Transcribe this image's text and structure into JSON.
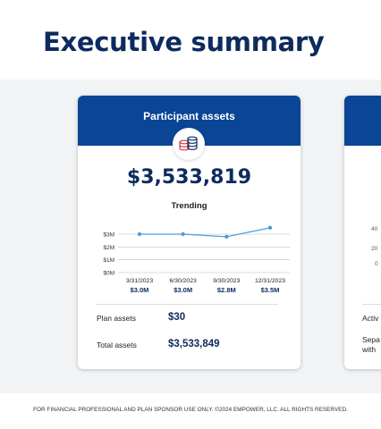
{
  "page": {
    "title": "Executive summary"
  },
  "card": {
    "title": "Participant assets",
    "icon": "coins-icon",
    "total": "$3,533,819",
    "trend_label": "Trending"
  },
  "chart_data": {
    "type": "line",
    "x": [
      "3/31/2023",
      "6/30/2023",
      "9/30/2023",
      "12/31/2023"
    ],
    "values": [
      3.0,
      3.0,
      2.8,
      3.5
    ],
    "value_labels": [
      "$3.0M",
      "$3.0M",
      "$2.8M",
      "$3.5M"
    ],
    "y_ticks": [
      3,
      2,
      1,
      0
    ],
    "y_tick_labels": [
      "$3M",
      "$2M",
      "$1M",
      "$0M"
    ],
    "ylim": [
      0,
      4
    ],
    "color": "#4e9fd6",
    "grid": true
  },
  "rows": [
    {
      "label": "Plan assets",
      "value": "$30"
    },
    {
      "label": "Total assets",
      "value": "$3,533,849"
    }
  ],
  "peek": {
    "ticks": [
      "40",
      "20",
      "0"
    ],
    "labels": [
      "Activ",
      "Sepa",
      "with"
    ]
  },
  "footer": "FOR FINANCIAL PROFESSIONAL AND PLAN SPONSOR USE ONLY. ©2024 EMPOWER, LLC. ALL RIGHTS RESERVED.",
  "colors": {
    "brand": "#0a4596",
    "title": "#0d2b5e",
    "band": "#f1f3f5",
    "coin_red": "#d0343c",
    "coin_navy": "#0d2b5e"
  }
}
